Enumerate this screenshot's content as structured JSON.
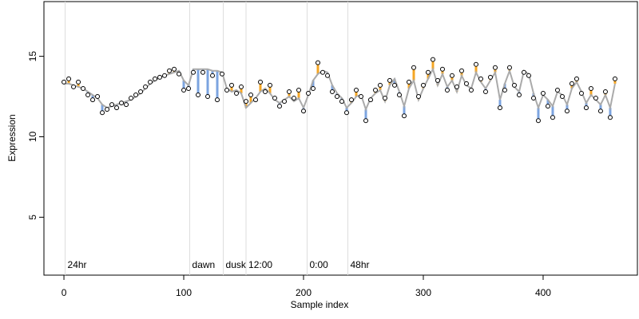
{
  "chart_data": {
    "type": "scatter",
    "x_label": "Sample index",
    "y_label": "Expression",
    "xlim": [
      -16.7,
      478.7
    ],
    "ylim": [
      1.4,
      18.4
    ],
    "xticks": [
      0,
      100,
      200,
      300,
      400
    ],
    "yticks": [
      5,
      10,
      15
    ],
    "point_color": "#000000",
    "fit_color": "#aaaaaa",
    "above_color": "#f5a623",
    "below_color": "#7ca4e0",
    "marker_color": "#dddddd",
    "marker_text_color": "#aaaaaa",
    "annotations": [
      {
        "x": 1,
        "label": "24hr"
      },
      {
        "x": 105,
        "label": "dawn"
      },
      {
        "x": 133,
        "label": "dusk"
      },
      {
        "x": 152,
        "label": "12:00"
      },
      {
        "x": 203,
        "label": "0:00"
      },
      {
        "x": 237,
        "label": "48hr"
      }
    ],
    "x": [
      0,
      4,
      8,
      12,
      16,
      20,
      24,
      28,
      32,
      36,
      40,
      44,
      48,
      52,
      56,
      60,
      64,
      68,
      72,
      76,
      80,
      84,
      88,
      92,
      96,
      100,
      104,
      108,
      112,
      116,
      120,
      124,
      128,
      132,
      136,
      140,
      144,
      148,
      152,
      156,
      160,
      164,
      168,
      172,
      176,
      180,
      184,
      188,
      192,
      196,
      200,
      204,
      208,
      212,
      216,
      220,
      224,
      228,
      232,
      236,
      240,
      244,
      248,
      252,
      256,
      260,
      264,
      268,
      272,
      276,
      280,
      284,
      288,
      292,
      296,
      300,
      304,
      308,
      312,
      316,
      320,
      324,
      328,
      332,
      336,
      340,
      344,
      348,
      352,
      356,
      360,
      364,
      368,
      372,
      376,
      380,
      384,
      388,
      392,
      396,
      400,
      404,
      408,
      412,
      416,
      420,
      424,
      428,
      432,
      436,
      440,
      444,
      448,
      452,
      456,
      460
    ],
    "values": [
      13.4,
      13.6,
      13.1,
      13.4,
      13.0,
      12.6,
      12.3,
      12.5,
      11.5,
      11.7,
      12.0,
      11.8,
      12.1,
      12.0,
      12.4,
      12.6,
      12.8,
      13.1,
      13.4,
      13.6,
      13.7,
      13.8,
      14.1,
      14.2,
      13.9,
      12.9,
      13.0,
      14.0,
      12.6,
      14.0,
      12.5,
      13.8,
      12.3,
      13.9,
      12.9,
      13.2,
      12.7,
      13.1,
      12.2,
      12.6,
      12.3,
      13.4,
      12.8,
      13.2,
      12.4,
      11.9,
      12.2,
      12.8,
      12.4,
      12.9,
      11.6,
      12.7,
      13.0,
      14.6,
      14.0,
      13.8,
      12.8,
      12.5,
      12.2,
      11.5,
      12.3,
      12.9,
      12.5,
      11.0,
      12.3,
      12.9,
      13.2,
      12.4,
      13.5,
      13.2,
      12.6,
      11.3,
      13.4,
      14.3,
      12.5,
      13.2,
      14.0,
      14.8,
      13.5,
      14.2,
      12.9,
      13.8,
      13.1,
      14.1,
      13.3,
      12.9,
      14.5,
      13.6,
      12.8,
      13.7,
      14.3,
      11.8,
      12.9,
      14.3,
      13.2,
      12.6,
      14.0,
      13.8,
      12.4,
      11.0,
      12.7,
      11.9,
      11.2,
      12.9,
      12.5,
      11.6,
      13.3,
      13.6,
      12.7,
      11.8,
      13.0,
      12.4,
      11.6,
      12.8,
      11.2,
      13.6
    ],
    "fit": [
      13.3,
      13.3,
      13.2,
      13.1,
      13.0,
      12.8,
      12.6,
      12.4,
      12.0,
      11.8,
      11.9,
      12.0,
      12.1,
      12.2,
      12.3,
      12.5,
      12.7,
      13.0,
      13.3,
      13.5,
      13.7,
      13.8,
      13.9,
      14.0,
      14.1,
      13.5,
      13.2,
      14.2,
      14.2,
      14.2,
      14.2,
      14.1,
      14.1,
      14.0,
      13.0,
      12.8,
      12.9,
      12.7,
      11.8,
      12.1,
      12.4,
      12.8,
      13.0,
      12.7,
      12.3,
      12.1,
      12.3,
      12.5,
      12.2,
      12.4,
      11.8,
      12.6,
      13.5,
      13.9,
      14.1,
      14.0,
      13.2,
      12.7,
      12.4,
      11.8,
      12.1,
      12.5,
      12.6,
      11.7,
      12.4,
      12.7,
      12.9,
      12.2,
      13.2,
      13.6,
      12.8,
      11.9,
      13.0,
      13.5,
      12.3,
      13.0,
      13.6,
      14.2,
      13.2,
      13.9,
      13.1,
      13.5,
      12.8,
      13.8,
      13.2,
      13.0,
      14.0,
      13.4,
      13.0,
      13.5,
      14.0,
      12.3,
      13.3,
      14.1,
      13.1,
      12.8,
      14.1,
      13.9,
      12.7,
      11.8,
      12.6,
      12.3,
      11.9,
      12.8,
      12.6,
      12.0,
      13.0,
      13.4,
      12.8,
      12.1,
      12.6,
      12.3,
      12.0,
      12.6,
      11.8,
      13.3
    ]
  }
}
